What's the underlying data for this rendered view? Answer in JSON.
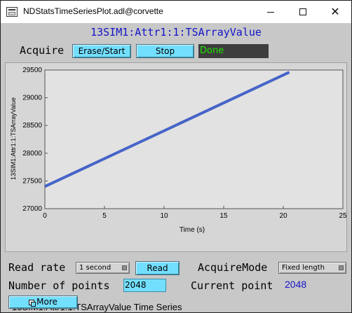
{
  "window": {
    "title": "NDStatsTimeSeriesPlot.adl@corvette"
  },
  "header": {
    "pv_title": "13SIM1:Attr1:1:TSArrayValue"
  },
  "acquire": {
    "label": "Acquire",
    "erase_start_label": "Erase/Start",
    "stop_label": "Stop",
    "status_text": "Done",
    "status_color": "#1ee600"
  },
  "chart_data": {
    "type": "line",
    "x": [
      0,
      20.5
    ],
    "series": [
      {
        "values": [
          27400,
          29460
        ],
        "color": "#4664c8"
      }
    ],
    "xlabel": "Time (s)",
    "ylabel": "13SIM1:Attr1:1:TSArrayValue",
    "xlim": [
      0,
      25
    ],
    "ylim": [
      27000,
      29500
    ],
    "xticks": [
      0,
      5,
      10,
      15,
      20,
      25
    ],
    "yticks": [
      27000,
      27500,
      28000,
      28500,
      29000,
      29500
    ],
    "grid": false
  },
  "plot": {
    "caption": "13SIM1:Attr1:1:TSArrayValue Time Series"
  },
  "controls": {
    "read_rate_label": "Read rate",
    "read_rate_value": "1 second",
    "read_label": "Read",
    "acquire_mode_label": "AcquireMode",
    "acquire_mode_value": "Fixed length",
    "number_of_points_label": "Number of points",
    "number_of_points_value": "2048",
    "current_point_label": "Current point",
    "current_point_value": "2048",
    "more_label": "More"
  },
  "icons": {
    "app": "document-icon",
    "minimize": "minimize-icon",
    "maximize": "maximize-icon",
    "close": "close-icon",
    "more": "window-stack-icon"
  },
  "colors": {
    "title_blue": "#1414c8",
    "button_cyan": "#73dfff",
    "panel_gray": "#c8c8c8",
    "status_bg": "#3d3d3d"
  }
}
